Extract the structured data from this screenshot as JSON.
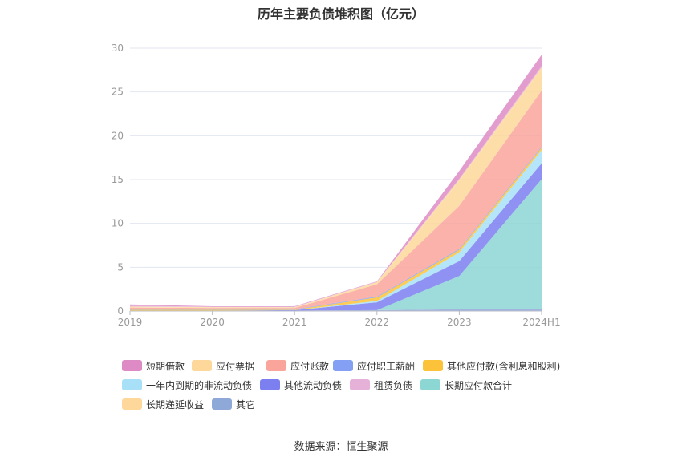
{
  "title": "历年主要负债堆积图（亿元）",
  "source": "数据来源：恒生聚源",
  "chart_data": {
    "type": "area",
    "stacked": true,
    "categories": [
      "2019",
      "2020",
      "2021",
      "2022",
      "2023",
      "2024H1"
    ],
    "ylim": [
      0,
      30
    ],
    "yticks": [
      "0",
      "5",
      "10",
      "15",
      "20",
      "25",
      "30"
    ],
    "grid": true,
    "legend_position": "bottom",
    "series": [
      {
        "name": "其它",
        "color": "#8ea8d8",
        "values": [
          0.05,
          0.05,
          0.05,
          0.1,
          0.2,
          0.25
        ]
      },
      {
        "name": "长期应付款合计",
        "color": "#8cd6d4",
        "values": [
          0,
          0,
          0,
          0,
          3.8,
          14.8
        ]
      },
      {
        "name": "其他流动负债",
        "color": "#7b7ff0",
        "values": [
          0,
          0,
          0.05,
          0.9,
          1.7,
          1.8
        ]
      },
      {
        "name": "一年内到期的非流动负债",
        "color": "#a8e0f7",
        "values": [
          0,
          0,
          0,
          0.15,
          1.0,
          1.5
        ]
      },
      {
        "name": "其他应付款(含利息和股利)",
        "color": "#fcc33a",
        "values": [
          0.1,
          0.1,
          0.05,
          0.4,
          0.3,
          0.3
        ]
      },
      {
        "name": "应付职工薪酬",
        "color": "#84a0f4",
        "values": [
          0.05,
          0.05,
          0.05,
          0.1,
          0.1,
          0.1
        ]
      },
      {
        "name": "应付账款",
        "color": "#f9a59c",
        "values": [
          0.2,
          0.15,
          0.15,
          1.4,
          4.9,
          6.4
        ]
      },
      {
        "name": "应付票据",
        "color": "#fdd89a",
        "values": [
          0.05,
          0.05,
          0.05,
          0.15,
          2.8,
          2.4
        ]
      },
      {
        "name": "长期递延收益",
        "color": "#fed89a",
        "values": [
          0.05,
          0.05,
          0.05,
          0.1,
          0.2,
          0.25
        ]
      },
      {
        "name": "租赁负债",
        "color": "#e6b1d9",
        "values": [
          0.1,
          0.05,
          0.05,
          0.05,
          0.1,
          0.15
        ]
      },
      {
        "name": "短期借款",
        "color": "#de8bc5",
        "values": [
          0.15,
          0.05,
          0.05,
          0.05,
          0.9,
          1.3
        ]
      }
    ],
    "legend": [
      {
        "name": "短期借款",
        "color": "#de8bc5"
      },
      {
        "name": "应付票据",
        "color": "#fdd89a"
      },
      {
        "name": "应付账款",
        "color": "#f9a59c"
      },
      {
        "name": "应付职工薪酬",
        "color": "#84a0f4"
      },
      {
        "name": "其他应付款(含利息和股利)",
        "color": "#fcc33a"
      },
      {
        "name": "一年内到期的非流动负债",
        "color": "#a8e0f7"
      },
      {
        "name": "其他流动负债",
        "color": "#7b7ff0"
      },
      {
        "name": "租赁负债",
        "color": "#e6b1d9"
      },
      {
        "name": "长期应付款合计",
        "color": "#8cd6d4"
      },
      {
        "name": "长期递延收益",
        "color": "#fed89a"
      },
      {
        "name": "其它",
        "color": "#8ea8d8"
      }
    ]
  }
}
